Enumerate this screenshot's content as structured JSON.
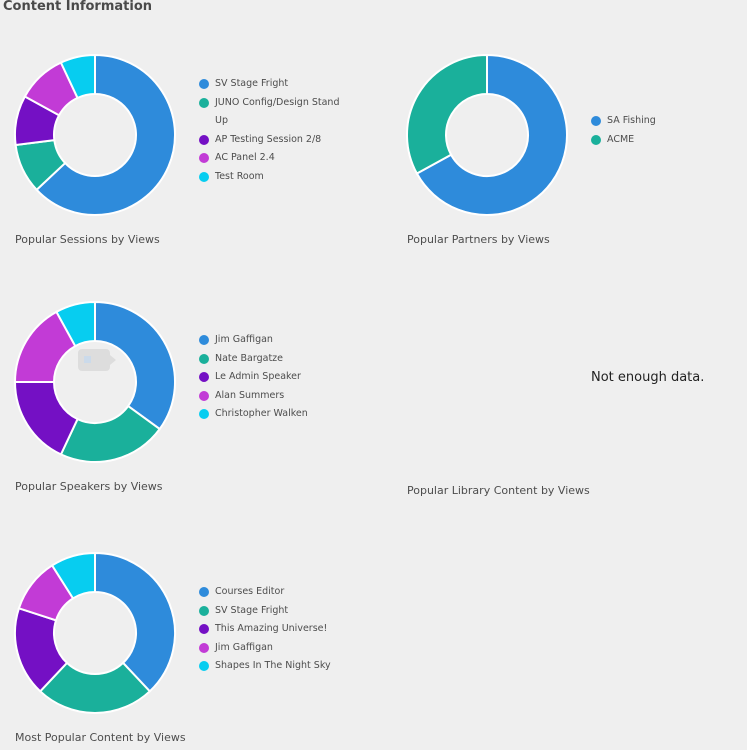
{
  "page": {
    "title": "Content Information"
  },
  "colors": [
    "#2e8bdb",
    "#1ab09b",
    "#7410c4",
    "#c23bd6",
    "#07cdf0"
  ],
  "panels": {
    "sessions": {
      "caption": "Popular Sessions by Views",
      "legend": [
        "SV Stage Fright",
        "JUNO Config/Design Stand Up",
        "AP Testing Session 2/8",
        "AC Panel 2.4",
        "Test Room"
      ]
    },
    "partners": {
      "caption": "Popular Partners by Views",
      "legend": [
        "SA Fishing",
        "ACME"
      ]
    },
    "speakers": {
      "caption": "Popular Speakers by Views",
      "legend": [
        "Jim Gaffigan",
        "Nate Bargatze",
        "Le Admin Speaker",
        "Alan Summers",
        "Christopher Walken"
      ]
    },
    "library": {
      "caption": "Popular Library Content by Views",
      "empty_message": "Not enough data."
    },
    "content": {
      "caption": "Most Popular Content by Views",
      "legend": [
        "Courses Editor",
        "SV Stage Fright",
        "This Amazing Universe!",
        "Jim Gaffigan",
        "Shapes In The Night Sky"
      ]
    }
  },
  "chart_data": [
    {
      "type": "pie",
      "categories": [
        "SV Stage Fright",
        "JUNO Config/Design Stand Up",
        "AP Testing Session 2/8",
        "AC Panel 2.4",
        "Test Room"
      ],
      "values": [
        63,
        10,
        10,
        10,
        7
      ],
      "title": "Popular Sessions by Views",
      "legend": "right"
    },
    {
      "type": "pie",
      "categories": [
        "SA Fishing",
        "ACME"
      ],
      "values": [
        67,
        33
      ],
      "title": "Popular Partners by Views",
      "legend": "right"
    },
    {
      "type": "pie",
      "categories": [
        "Jim Gaffigan",
        "Nate Bargatze",
        "Le Admin Speaker",
        "Alan Summers",
        "Christopher Walken"
      ],
      "values": [
        35,
        22,
        18,
        17,
        8
      ],
      "title": "Popular Speakers by Views",
      "legend": "right"
    },
    {
      "type": "pie",
      "categories": [
        "Courses Editor",
        "SV Stage Fright",
        "This Amazing Universe!",
        "Jim Gaffigan",
        "Shapes In The Night Sky"
      ],
      "values": [
        38,
        24,
        18,
        11,
        9
      ],
      "title": "Most Popular Content by Views",
      "legend": "right"
    }
  ]
}
